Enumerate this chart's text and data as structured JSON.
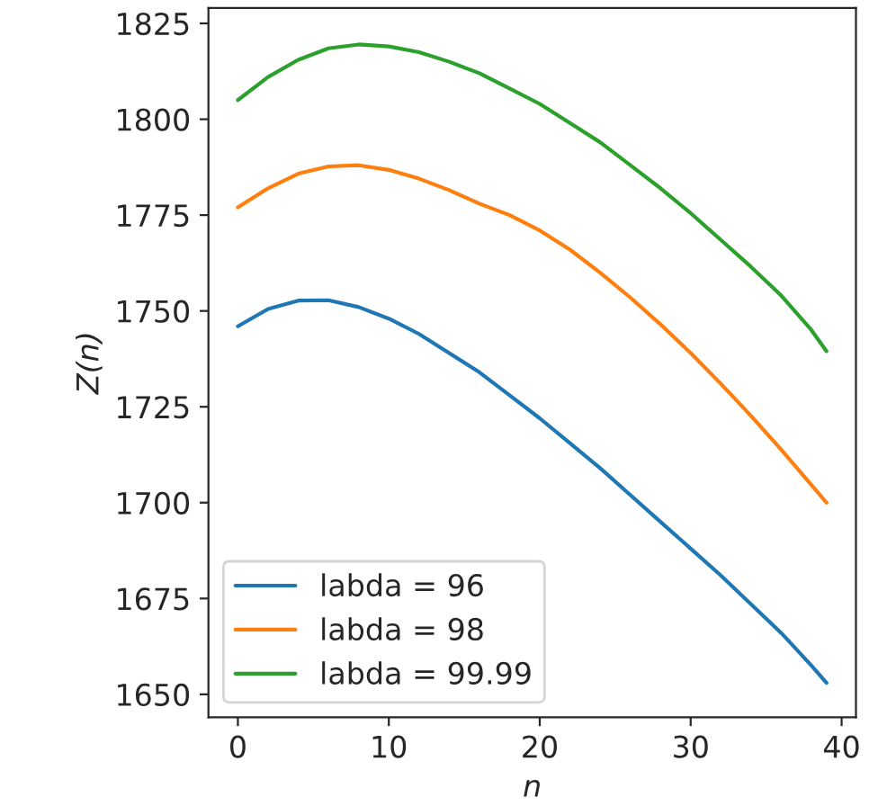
{
  "chart_data": {
    "type": "line",
    "xlabel": "n",
    "ylabel": "Z(n)",
    "x": [
      0,
      2,
      4,
      6,
      8,
      10,
      12,
      14,
      16,
      18,
      20,
      22,
      24,
      26,
      28,
      30,
      32,
      34,
      36,
      38,
      39
    ],
    "series": [
      {
        "name": "labda = 96",
        "color": "#1f77b4",
        "values": [
          1746,
          1750.5,
          1752.7,
          1752.8,
          1751,
          1748,
          1744,
          1739,
          1734,
          1728,
          1722,
          1715.5,
          1709,
          1702,
          1695,
          1688,
          1681,
          1673.5,
          1666,
          1657.5,
          1653
        ]
      },
      {
        "name": "labda = 98",
        "color": "#ff7f0e",
        "values": [
          1777,
          1782,
          1785.8,
          1787.7,
          1788,
          1786.8,
          1784.5,
          1781.5,
          1778,
          1775,
          1771,
          1766,
          1760,
          1753.5,
          1746.5,
          1739,
          1731,
          1722.6,
          1713.8,
          1704.6,
          1700
        ]
      },
      {
        "name": "labda = 99.99",
        "color": "#2ca02c",
        "values": [
          1805,
          1811,
          1815.5,
          1818.5,
          1819.5,
          1819,
          1817.5,
          1815,
          1812,
          1808,
          1804,
          1799,
          1794,
          1788,
          1782,
          1775.5,
          1768.5,
          1761.5,
          1754,
          1745,
          1739.5
        ]
      }
    ],
    "xlim": [
      -1.95,
      40.95
    ],
    "ylim": [
      1644,
      1829
    ],
    "xticks": [
      0,
      10,
      20,
      30,
      40
    ],
    "yticks": [
      1650,
      1675,
      1700,
      1725,
      1750,
      1775,
      1800,
      1825
    ],
    "legend": "bottom left",
    "grid": false,
    "marker": "none",
    "line_style": "solid"
  }
}
